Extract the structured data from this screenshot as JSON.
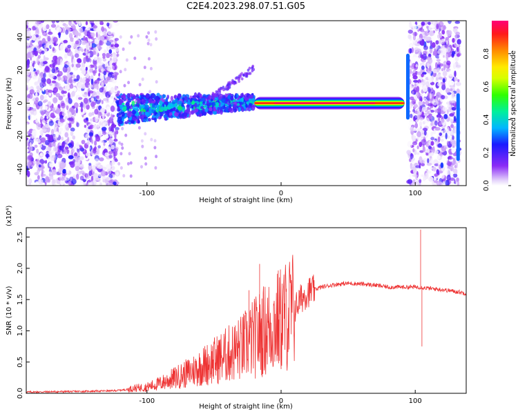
{
  "title": "C2E4.2023.298.07.51.G05",
  "chart_data": [
    {
      "type": "heatmap",
      "xlabel": "Height of straight line (km)",
      "ylabel": "Frequency (Hz)",
      "xlim": [
        -190,
        138
      ],
      "ylim": [
        -50,
        50
      ],
      "xticks": [
        "-100",
        "0",
        "100"
      ],
      "yticks": [
        "-40",
        "-20",
        "0",
        "20",
        "40"
      ],
      "colorbar": {
        "label": "Normalized spectral amplitude",
        "ticks": [
          "0.0",
          "0.2",
          "0.4",
          "0.6",
          "0.8"
        ],
        "range": [
          0,
          1
        ]
      },
      "features": [
        {
          "name": "noise",
          "x_range": [
            -190,
            -122
          ],
          "y_range": [
            -50,
            50
          ],
          "amplitude": 0.15
        },
        {
          "name": "noise",
          "x_range": [
            95,
            133
          ],
          "y_range": [
            -50,
            50
          ],
          "amplitude": 0.15
        },
        {
          "name": "signal",
          "x_range": [
            -122,
            -20
          ],
          "freq_center": [
            -4,
            0
          ],
          "amplitude": 0.35
        },
        {
          "name": "carrier",
          "x_range": [
            -20,
            92
          ],
          "freq_center": 0,
          "amplitude": 1.0
        }
      ]
    },
    {
      "type": "line",
      "xlabel": "Height of straight line (km)",
      "ylabel": "SNR (10 * v/v)",
      "yscale_label": "(x10⁴)",
      "xlim": [
        -190,
        138
      ],
      "ylim": [
        0,
        2.65
      ],
      "xticks": [
        "-100",
        "0",
        "100"
      ],
      "yticks": [
        "0.0",
        "0.5",
        "1.0",
        "1.5",
        "2.0",
        "2.5"
      ],
      "color": "#ee3333",
      "series": [
        {
          "x": [
            -190,
            -150,
            -125,
            -115,
            -110,
            -100,
            -90,
            -80,
            -70,
            -60,
            -50,
            -40,
            -30,
            -20,
            -10,
            0,
            10,
            15,
            20,
            30,
            40,
            50,
            60,
            70,
            80,
            90,
            95,
            100,
            103,
            110,
            120,
            130,
            138
          ],
          "values": [
            0.02,
            0.03,
            0.04,
            0.06,
            0.08,
            0.1,
            0.16,
            0.24,
            0.32,
            0.42,
            0.52,
            0.62,
            0.72,
            0.88,
            1.05,
            1.18,
            1.35,
            1.52,
            1.62,
            1.7,
            1.74,
            1.76,
            1.75,
            1.73,
            1.7,
            1.7,
            1.7,
            1.7,
            1.7,
            1.68,
            1.66,
            1.63,
            1.6
          ]
        }
      ],
      "spikes": [
        {
          "x": -16,
          "value": 2.07
        },
        {
          "x": -24,
          "value": 1.65
        },
        {
          "x": 104,
          "value": 2.62
        },
        {
          "x": 105,
          "value": 0.75
        }
      ]
    }
  ]
}
